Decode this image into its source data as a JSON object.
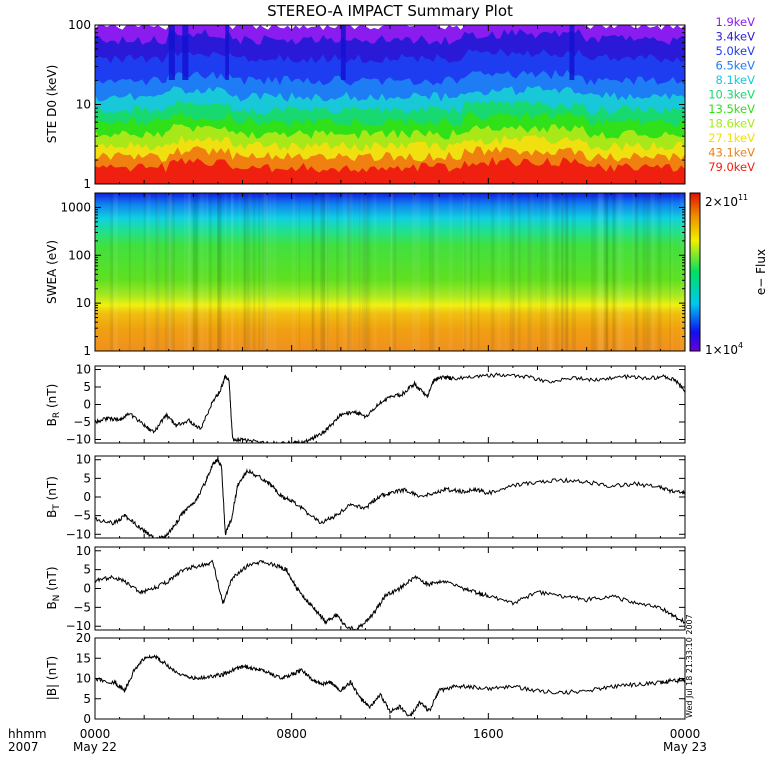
{
  "title": "STEREO-A IMPACT Summary Plot",
  "energy_legend": [
    {
      "label": "1.9keV",
      "color": "#8a1cf0"
    },
    {
      "label": "3.4keV",
      "color": "#2a1ad8"
    },
    {
      "label": "5.0keV",
      "color": "#1e3cf0"
    },
    {
      "label": "6.5keV",
      "color": "#1e7cf5"
    },
    {
      "label": "8.1keV",
      "color": "#18c8d8"
    },
    {
      "label": "10.3keV",
      "color": "#18d870"
    },
    {
      "label": "13.5keV",
      "color": "#30e018"
    },
    {
      "label": "18.6keV",
      "color": "#a8e818"
    },
    {
      "label": "27.1keV",
      "color": "#f0e010"
    },
    {
      "label": "43.1keV",
      "color": "#f08010"
    },
    {
      "label": "79.0keV",
      "color": "#f02010"
    }
  ],
  "colorbar": {
    "top_label_base": "2×10",
    "top_label_exp": "11",
    "bottom_label_base": "1×10",
    "bottom_label_exp": "4",
    "title": "e− Flux"
  },
  "footer": {
    "time_label": "hhmm",
    "year_label": "2007",
    "stamp": "Wed Jul 18 21:33:10 2007"
  },
  "chart_data": [
    {
      "id": "ste",
      "type": "line",
      "ylabel": "STE D0 (keV)",
      "yscale": "log",
      "ylim": [
        1,
        100
      ],
      "yticks": [
        {
          "label": "1",
          "value": 1
        },
        {
          "label": "10",
          "value": 10
        },
        {
          "label": "100",
          "value": 100
        }
      ],
      "series": [
        {
          "name": "79.0keV",
          "level": 1.6
        },
        {
          "name": "43.1keV",
          "level": 2.2
        },
        {
          "name": "27.1keV",
          "level": 3.0
        },
        {
          "name": "18.6keV",
          "level": 4.2
        },
        {
          "name": "13.5keV",
          "level": 6.0
        },
        {
          "name": "10.3keV",
          "level": 8.5
        },
        {
          "name": "8.1keV",
          "level": 12.5
        },
        {
          "name": "6.5keV",
          "level": 20
        },
        {
          "name": "5.0keV",
          "level": 38
        },
        {
          "name": "3.4keV",
          "level": 65
        },
        {
          "name": "1.9keV",
          "level": 100
        }
      ]
    },
    {
      "id": "swea",
      "type": "heatmap",
      "ylabel": "SWEA (eV)",
      "yscale": "log",
      "ylim": [
        1,
        2000
      ],
      "yticks": [
        {
          "label": "1",
          "value": 1
        },
        {
          "label": "10",
          "value": 10
        },
        {
          "label": "100",
          "value": 100
        },
        {
          "label": "1000",
          "value": 1000
        }
      ],
      "zscale": "log",
      "zlim": [
        10000,
        200000000000
      ]
    },
    {
      "id": "br",
      "type": "line",
      "ylabel": "B",
      "ylabel_sub": "R",
      "ylabel_units": " (nT)",
      "ylim": [
        -11,
        11
      ],
      "yticks": [
        {
          "label": "10",
          "value": 10
        },
        {
          "label": "5",
          "value": 5
        },
        {
          "label": "0",
          "value": 0
        },
        {
          "label": "−5",
          "value": -5
        },
        {
          "label": "−10",
          "value": -10
        }
      ],
      "x_hours": [
        0,
        0.5,
        1,
        1.4,
        2,
        2.4,
        2.9,
        3.3,
        3.8,
        4.3,
        4.8,
        5.1,
        5.3,
        5.45,
        5.6,
        6,
        7,
        8,
        8.4,
        8.8,
        9.3,
        9.6,
        10,
        10.5,
        11,
        11.5,
        12,
        12.5,
        13,
        13.5,
        13.8,
        14.2,
        14.5,
        15.5,
        16.5,
        17.5,
        18.5,
        19.5,
        20.5,
        21.5,
        22.5,
        23.2,
        23.6,
        24
      ],
      "values": [
        -5,
        -4,
        -4.5,
        -2.5,
        -6,
        -8,
        -3,
        -6,
        -4.5,
        -7,
        1,
        4,
        8,
        7,
        -10,
        -10,
        -11,
        -11,
        -11,
        -10,
        -8,
        -6,
        -3,
        -2,
        -3.5,
        0,
        2,
        3,
        6,
        2,
        7,
        8,
        7.5,
        8,
        8.5,
        8,
        6.5,
        7.5,
        7,
        8,
        7.5,
        8,
        7,
        4
      ]
    },
    {
      "id": "bt",
      "type": "line",
      "ylabel": "B",
      "ylabel_sub": "T",
      "ylabel_units": " (nT)",
      "ylim": [
        -11,
        11
      ],
      "yticks": [
        {
          "label": "10",
          "value": 10
        },
        {
          "label": "5",
          "value": 5
        },
        {
          "label": "0",
          "value": 0
        },
        {
          "label": "−5",
          "value": -5
        },
        {
          "label": "−10",
          "value": -10
        }
      ],
      "x_hours": [
        0,
        0.8,
        1.2,
        1.6,
        2,
        2.4,
        2.8,
        3.2,
        3.6,
        4.0,
        4.5,
        4.8,
        5.0,
        5.15,
        5.3,
        5.55,
        5.8,
        6.2,
        6.8,
        7.2,
        7.6,
        8,
        8.6,
        9.2,
        9.8,
        10.4,
        11,
        11.5,
        12,
        12.6,
        13.2,
        13.8,
        14.3,
        15,
        15.5,
        16,
        17,
        18,
        19,
        20,
        21,
        22,
        23,
        23.5,
        24
      ],
      "values": [
        -6,
        -7,
        -5,
        -7,
        -9,
        -11,
        -11,
        -8,
        -4,
        -2,
        4,
        9,
        10,
        8,
        -10,
        -6,
        3,
        7,
        5,
        3,
        0,
        -1,
        -4,
        -7,
        -5,
        -2,
        -3,
        0,
        1,
        2,
        0,
        1,
        2,
        1.5,
        2,
        1,
        3,
        4,
        4.5,
        4,
        3,
        3.5,
        2.5,
        1.5,
        1
      ]
    },
    {
      "id": "bn",
      "type": "line",
      "ylabel": "B",
      "ylabel_sub": "N",
      "ylabel_units": " (nT)",
      "ylim": [
        -11,
        11
      ],
      "yticks": [
        {
          "label": "10",
          "value": 10
        },
        {
          "label": "5",
          "value": 5
        },
        {
          "label": "0",
          "value": 0
        },
        {
          "label": "−5",
          "value": -5
        },
        {
          "label": "−10",
          "value": -10
        }
      ],
      "x_hours": [
        0,
        0.6,
        1.2,
        1.8,
        2.4,
        3.0,
        3.6,
        4.2,
        4.8,
        5.2,
        5.6,
        6.2,
        6.8,
        7.4,
        7.8,
        8.2,
        8.6,
        9.0,
        9.4,
        9.8,
        10.2,
        10.6,
        11.0,
        11.4,
        11.8,
        12.4,
        13,
        13.6,
        14.2,
        15,
        15.5,
        16,
        17,
        18,
        19,
        20,
        21,
        22,
        23,
        23.5,
        24
      ],
      "values": [
        2,
        3,
        2,
        -1,
        0,
        2,
        5,
        6,
        7,
        -4,
        3,
        6,
        7,
        6,
        5,
        0,
        -3,
        -6,
        -9,
        -7,
        -10,
        -11,
        -9,
        -6,
        -2,
        0,
        3,
        1,
        2,
        0,
        -1,
        -2,
        -4,
        -1,
        -2,
        -3,
        -2,
        -4,
        -5,
        -7,
        -9
      ]
    },
    {
      "id": "bmag",
      "type": "line",
      "ylabel": "|B| (nT)",
      "ylim": [
        0,
        20
      ],
      "yticks": [
        {
          "label": "20",
          "value": 20
        },
        {
          "label": "15",
          "value": 15
        },
        {
          "label": "10",
          "value": 10
        },
        {
          "label": "5",
          "value": 5
        },
        {
          "label": "0",
          "value": 0
        }
      ],
      "x_hours": [
        0,
        0.8,
        1.2,
        1.6,
        2.0,
        2.4,
        2.8,
        3.4,
        4.0,
        4.6,
        5.2,
        5.6,
        6.0,
        6.4,
        6.8,
        7.2,
        7.6,
        8.0,
        8.4,
        8.8,
        9.2,
        9.6,
        10,
        10.4,
        10.8,
        11.2,
        11.6,
        12,
        12.4,
        12.8,
        13.2,
        13.6,
        14,
        14.6,
        15.2,
        16,
        17,
        18,
        19,
        20,
        21,
        22,
        23,
        23.5,
        24
      ],
      "values": [
        10,
        9,
        7,
        12,
        15,
        15.5,
        14,
        11,
        10,
        10.5,
        11,
        12,
        13,
        12.5,
        12,
        11,
        10,
        11,
        12,
        10,
        8.5,
        9,
        7,
        9,
        5,
        3,
        6,
        2,
        3,
        0.5,
        4,
        2,
        7,
        8,
        8,
        7.5,
        8,
        7,
        6.5,
        7,
        8,
        8.5,
        9,
        9.5,
        9.5
      ]
    }
  ],
  "x_axis": {
    "range_hours": [
      0,
      24
    ],
    "ticks": [
      {
        "hours": 0,
        "label": "0000",
        "sub": "May 22"
      },
      {
        "hours": 8,
        "label": "0800",
        "sub": ""
      },
      {
        "hours": 16,
        "label": "1600",
        "sub": ""
      },
      {
        "hours": 24,
        "label": "0000",
        "sub": "May 23"
      }
    ]
  }
}
